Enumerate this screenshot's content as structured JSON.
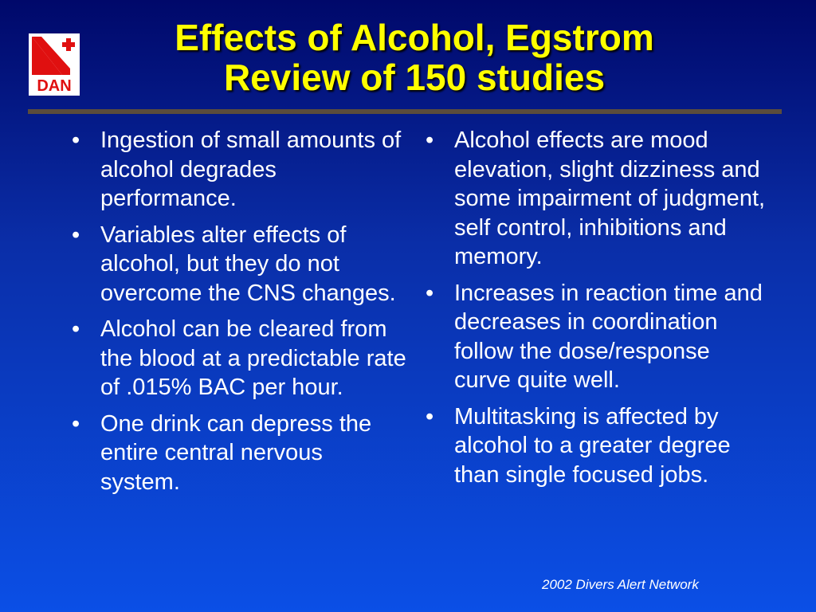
{
  "logo": {
    "text": "DAN"
  },
  "header": {
    "title": [
      "Effects of Alcohol, Egstrom",
      "Review of 150 studies"
    ]
  },
  "left_bullets": [
    "Ingestion of small amounts of alcohol degrades performance.",
    "Variables alter effects of alcohol, but they do not overcome the CNS changes.",
    "Alcohol can be cleared from the blood at a predictable rate of .015% BAC per hour.",
    "One drink can depress the entire central nervous system."
  ],
  "right_bullets": [
    "Alcohol effects are mood elevation, slight dizziness and some impairment of judgment, self control, inhibitions and memory.",
    "Increases in reaction time and decreases in coordination follow the dose/response curve quite well.",
    "Multitasking is affected by alcohol to a greater degree than single focused jobs."
  ],
  "footer": "2002 Divers Alert Network"
}
